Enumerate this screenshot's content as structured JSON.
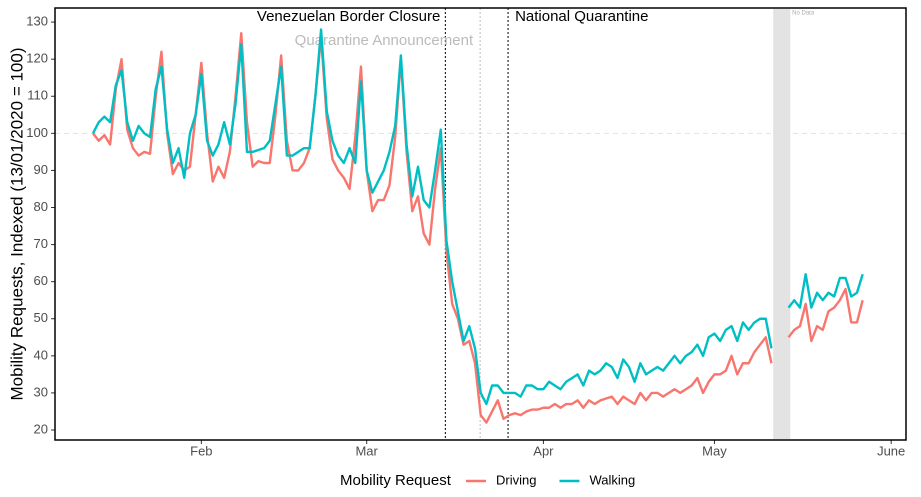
{
  "chart_data": {
    "type": "line",
    "y_label": "Mobility Requests, Indexed (13/01/2020 = 100)",
    "legend_title": "Mobility Request",
    "legend": "bottom",
    "x": [
      0,
      1,
      2,
      3,
      4,
      5,
      6,
      7,
      8,
      9,
      10,
      11,
      12,
      13,
      14,
      15,
      16,
      17,
      18,
      19,
      20,
      21,
      22,
      23,
      24,
      25,
      26,
      27,
      28,
      29,
      30,
      31,
      32,
      33,
      34,
      35,
      36,
      37,
      38,
      39,
      40,
      41,
      42,
      43,
      44,
      45,
      46,
      47,
      48,
      49,
      50,
      51,
      52,
      53,
      54,
      55,
      56,
      57,
      58,
      59,
      60,
      61,
      62,
      63,
      64,
      65,
      66,
      67,
      68,
      69,
      70,
      71,
      72,
      73,
      74,
      75,
      76,
      77,
      78,
      79,
      80,
      81,
      82,
      83,
      84,
      85,
      86,
      87,
      88,
      89,
      90,
      91,
      92,
      93,
      94,
      95,
      96,
      97,
      98,
      99,
      100,
      101,
      102,
      103,
      104,
      105,
      106,
      107,
      108,
      109,
      110,
      111,
      112,
      113,
      114,
      115,
      116,
      117,
      118,
      119,
      120,
      121,
      122,
      123,
      124,
      125,
      126,
      127,
      128,
      129,
      130,
      131,
      132,
      133,
      134,
      135
    ],
    "series": [
      {
        "name": "Driving",
        "color": "#f8766d",
        "values": [
          100,
          98,
          99.5,
          97,
          112,
          120,
          101,
          96,
          94,
          95,
          94.5,
          110,
          122,
          100,
          89,
          92,
          90,
          91,
          105,
          119,
          100,
          87,
          91,
          88,
          95,
          110,
          127,
          103,
          91,
          92.5,
          92,
          92,
          105,
          121,
          98,
          90,
          90,
          92,
          96,
          110,
          126,
          104,
          93,
          90,
          88,
          85,
          99,
          118,
          90,
          79,
          82,
          82,
          86,
          99,
          120,
          95,
          79,
          83,
          73,
          70,
          85,
          96,
          68,
          54,
          50,
          43,
          44,
          38,
          24,
          22,
          25,
          28,
          23,
          24,
          24.5,
          24,
          25,
          25.5,
          25.5,
          26,
          26,
          27,
          26,
          27,
          27,
          28,
          26,
          28,
          27,
          28,
          28.5,
          29,
          27,
          29,
          28,
          27,
          30,
          28,
          30,
          30,
          29,
          30,
          31,
          30,
          31,
          32,
          34,
          30,
          33,
          35,
          35,
          36,
          40,
          35,
          38,
          38,
          41,
          43,
          45,
          38,
          null,
          null,
          45,
          47,
          48,
          54,
          44,
          48,
          47,
          52,
          53,
          55,
          58,
          49,
          49,
          55
        ]
      },
      {
        "name": "Walking",
        "color": "#00bfc4",
        "values": [
          100,
          103,
          104.5,
          103,
          113,
          117,
          103,
          98,
          102,
          100,
          99,
          112,
          118,
          101,
          92,
          96,
          88,
          100,
          105,
          116,
          98,
          94,
          97,
          103,
          97,
          108,
          124,
          95,
          95,
          95.5,
          96,
          98,
          108,
          118,
          94,
          94,
          95,
          96,
          96,
          110,
          128,
          106,
          98,
          94,
          92,
          96,
          92,
          114,
          90,
          84,
          87,
          90,
          95,
          102,
          121,
          97,
          83,
          91,
          82,
          80,
          90,
          101,
          71,
          60,
          52,
          44,
          48,
          42,
          30,
          27,
          32,
          32,
          30,
          30,
          30,
          29,
          32,
          32,
          31,
          31,
          33,
          32,
          31,
          33,
          34,
          35,
          32,
          36,
          35,
          36,
          38,
          37,
          34,
          39,
          37,
          33,
          38,
          35,
          36,
          37,
          36,
          38,
          40,
          38,
          40,
          41,
          43,
          40,
          45,
          46,
          44,
          47,
          48,
          44,
          49,
          47,
          49,
          50,
          50,
          42,
          null,
          null,
          53,
          55,
          53,
          62,
          53,
          57,
          55,
          57,
          56,
          61,
          61,
          56,
          57,
          62
        ]
      }
    ],
    "xlim": [
      -6.67,
      142.6
    ],
    "xticks": [
      {
        "value": 19,
        "label": "Feb"
      },
      {
        "value": 48,
        "label": "Mar"
      },
      {
        "value": 79,
        "label": "Apr"
      },
      {
        "value": 109,
        "label": "May"
      },
      {
        "value": 140,
        "label": "June"
      }
    ],
    "ylim": [
      17.3,
      133.8
    ],
    "yticks": [
      20,
      30,
      40,
      50,
      60,
      70,
      80,
      90,
      100,
      110,
      120,
      130
    ],
    "hline": 100,
    "annotations": [
      {
        "text": "Venezuelan Border Closure",
        "x": 61.8,
        "color": "#000000"
      },
      {
        "text": "Quarantine Announcement",
        "x": 67.9,
        "color": "#bbbbbb"
      },
      {
        "text": "National Quarantine",
        "x": 72.8,
        "color": "#000000"
      }
    ],
    "shaded": {
      "x": [
        119.3,
        122.3
      ],
      "label": "No Data"
    }
  }
}
